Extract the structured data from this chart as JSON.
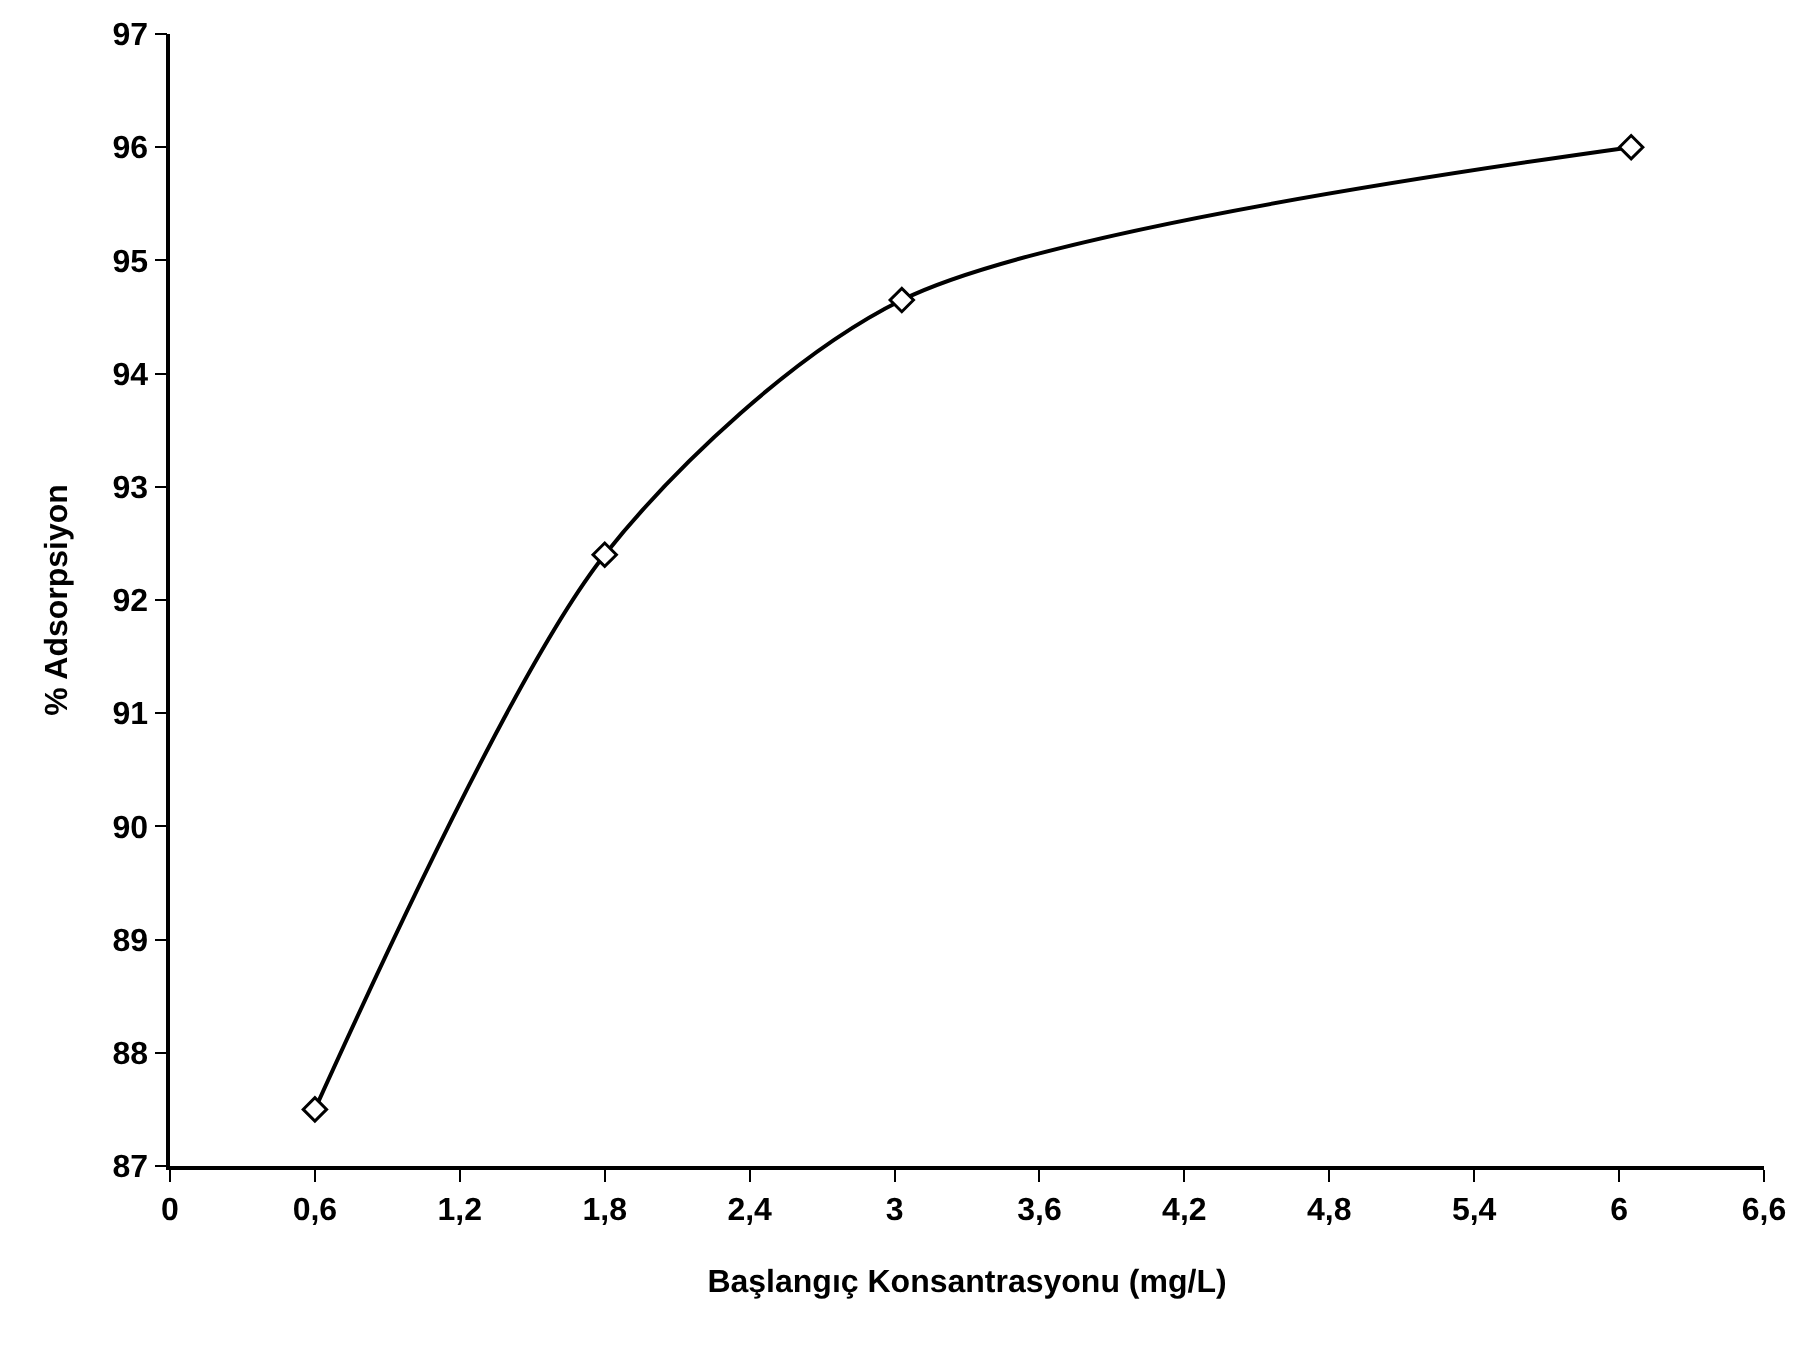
{
  "chart_data": {
    "type": "line",
    "xlabel": "Başlangıç Konsantrasyonu (mg/L)",
    "ylabel": "% Adsorpsiyon",
    "x": [
      0.6,
      1.8,
      3.03,
      6.05
    ],
    "series": [
      {
        "color": "#000000",
        "values": [
          87.5,
          92.4,
          94.65,
          96.0
        ]
      }
    ],
    "xlim": [
      0,
      6.6
    ],
    "xticks": [
      0,
      {
        "value": 0.6,
        "label": "0,6"
      },
      {
        "value": 1.2,
        "label": "1,2"
      },
      {
        "value": 1.8,
        "label": "1,8"
      },
      {
        "value": 2.4,
        "label": "2,4"
      },
      3,
      {
        "value": 3.6,
        "label": "3,6"
      },
      {
        "value": 4.2,
        "label": "4,2"
      },
      {
        "value": 4.8,
        "label": "4,8"
      },
      {
        "value": 5.4,
        "label": "5,4"
      },
      6,
      {
        "value": 6.6,
        "label": "6,6"
      }
    ],
    "ylim": [
      87,
      97
    ],
    "yticks": [
      87,
      88,
      89,
      90,
      91,
      92,
      93,
      94,
      95,
      96,
      97
    ],
    "grid": false,
    "marker": "diamond",
    "line_style": "solid"
  }
}
